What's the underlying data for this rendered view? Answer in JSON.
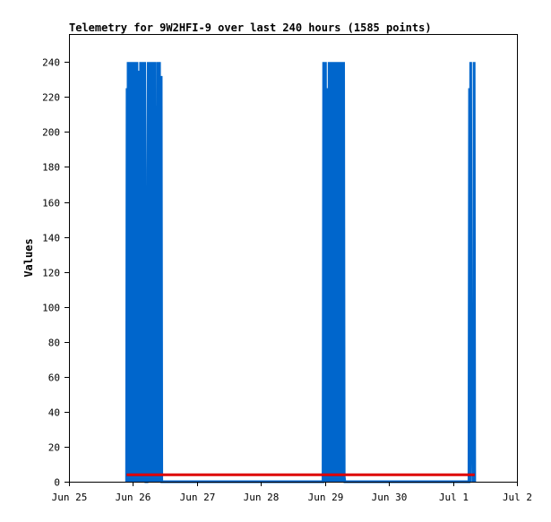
{
  "chart_data": {
    "type": "line",
    "title": "Telemetry for 9W2HFI-9 over last 240 hours (1585 points)",
    "ylabel": "Values",
    "xlabel": "",
    "x_ticks": [
      "Jun 25",
      "Jun 26",
      "Jun 27",
      "Jun 28",
      "Jun 29",
      "Jun 30",
      "Jul 1",
      "Jul 2"
    ],
    "y_ticks": [
      0,
      20,
      40,
      60,
      80,
      100,
      120,
      140,
      160,
      180,
      200,
      220,
      240
    ],
    "xlim_days": [
      0,
      7
    ],
    "ylim": [
      0,
      256
    ],
    "grid": false,
    "series": [
      {
        "color": "#0066cc",
        "bursts": [
          {
            "start": 0.9,
            "end": 1.2,
            "values": [
              0,
              225,
              3,
              240,
              0,
              240,
              2,
              240,
              5,
              0,
              240,
              3,
              190,
              240,
              0,
              240,
              4,
              210,
              0,
              180,
              240,
              2,
              0,
              235,
              5,
              208,
              0,
              240,
              3,
              0,
              240,
              0,
              225,
              4,
              0,
              240,
              3,
              0
            ]
          },
          {
            "start": 1.22,
            "end": 1.45,
            "values": [
              0,
              178,
              240,
              3,
              0,
              240,
              25,
              0,
              240,
              0,
              70,
              240,
              0,
              120,
              240,
              3,
              0,
              215,
              0,
              240,
              170,
              0,
              240,
              3,
              0,
              232,
              0
            ]
          },
          {
            "start": 3.97,
            "end": 4.31,
            "values": [
              0,
              240,
              3,
              0,
              240,
              0,
              5,
              225,
              0,
              3,
              240,
              0,
              178,
              0,
              240,
              0,
              240,
              3,
              0,
              240,
              0,
              4,
              240,
              0,
              3,
              240,
              0,
              5,
              240,
              0,
              240,
              3,
              240,
              0,
              240,
              3,
              0
            ]
          },
          {
            "start": 6.25,
            "end": 6.34,
            "values": [
              0,
              225,
              0,
              240,
              44,
              20,
              35,
              0,
              15,
              240,
              0
            ]
          }
        ]
      },
      {
        "color": "#dd0000",
        "points": [
          [
            0.9,
            4
          ],
          [
            6.34,
            4
          ]
        ]
      }
    ]
  }
}
